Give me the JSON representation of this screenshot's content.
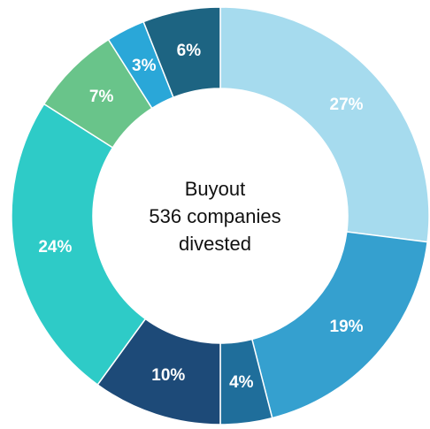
{
  "chart_data": {
    "type": "pie",
    "variant": "donut",
    "center_label": {
      "line1": "Buyout",
      "line2": "536 companies",
      "line3": "divested"
    },
    "slices": [
      {
        "label": "27%",
        "value": 27,
        "color": "#a6dbee"
      },
      {
        "label": "19%",
        "value": 19,
        "color": "#35a0cf"
      },
      {
        "label": "4%",
        "value": 4,
        "color": "#1f6e9b"
      },
      {
        "label": "10%",
        "value": 10,
        "color": "#1d4a78"
      },
      {
        "label": "24%",
        "value": 24,
        "color": "#2ecbc7"
      },
      {
        "label": "7%",
        "value": 7,
        "color": "#69c48a"
      },
      {
        "label": "3%",
        "value": 3,
        "color": "#2aa7d8"
      },
      {
        "label": "6%",
        "value": 6,
        "color": "#1d6482"
      }
    ],
    "legend": "none"
  }
}
